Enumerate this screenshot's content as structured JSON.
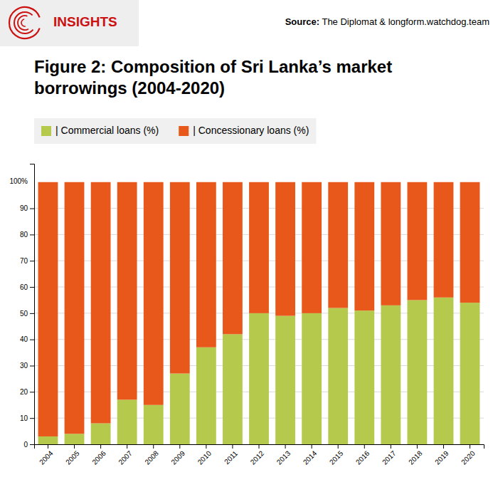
{
  "chart_data": {
    "type": "bar",
    "stacked": true,
    "title": "Figure 2: Composition of Sri Lanka’s market\nborrowings (2004-2020)",
    "categories": [
      "2004",
      "2005",
      "2006",
      "2007",
      "2008",
      "2009",
      "2010",
      "2011",
      "2012",
      "2013",
      "2014",
      "2015",
      "2016",
      "2017",
      "2018",
      "2019",
      "2020"
    ],
    "series": [
      {
        "name": "| Commercial loans (%)",
        "color": "#b5c94c",
        "values": [
          3,
          4,
          8,
          17,
          15,
          27,
          37,
          42,
          50,
          49,
          50,
          52,
          51,
          53,
          55,
          56,
          54
        ]
      },
      {
        "name": "| Concessionary loans (%)",
        "color": "#e8581a",
        "values": [
          97,
          96,
          92,
          83,
          85,
          73,
          63,
          58,
          50,
          51,
          50,
          48,
          49,
          47,
          45,
          44,
          46
        ]
      }
    ],
    "ylim": [
      0,
      107
    ],
    "yticks": [
      0,
      10,
      20,
      30,
      40,
      50,
      60,
      70,
      80,
      90
    ],
    "grid": true,
    "annotations": [
      {
        "text": "100%",
        "y": 100
      },
      {
        "text": "INSIGHTS",
        "color": "#cc1111"
      },
      {
        "text": "Source:"
      },
      {
        "text": " The Diplomat & longform.watchdog.team"
      }
    ]
  }
}
